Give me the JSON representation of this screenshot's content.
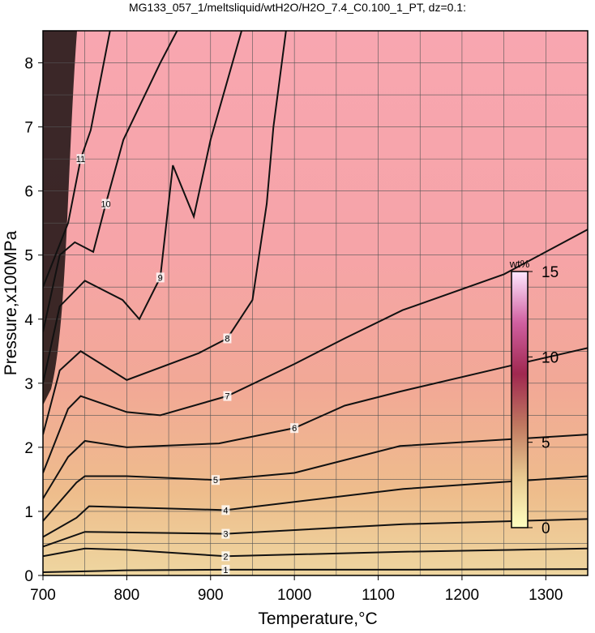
{
  "chart_data": {
    "type": "contour",
    "title": "MG133_057_1/meltsliquid/wtH2O/H2O_7.4_C0.100_1_PT, dz=0.1:",
    "xlabel": "Temperature,°C",
    "ylabel": "Pressure,x100MPa",
    "xlim": [
      700,
      1350
    ],
    "ylim": [
      0,
      8.5
    ],
    "xticks": [
      700,
      800,
      900,
      1000,
      1100,
      1200,
      1300
    ],
    "yticks": [
      0,
      1,
      2,
      3,
      4,
      5,
      6,
      7,
      8
    ],
    "xgrid": [
      750,
      800,
      850,
      900,
      950,
      1000,
      1050,
      1100,
      1150,
      1200,
      1250,
      1300
    ],
    "ygrid": [
      0.5,
      1,
      1.5,
      2,
      2.5,
      3,
      3.5,
      4,
      4.5,
      5,
      5.5,
      6,
      6.5,
      7,
      7.5,
      8
    ],
    "contours": [
      {
        "level": 1,
        "x": [
          700,
          800,
          918,
          1130,
          1350
        ],
        "y": [
          0.05,
          0.08,
          0.09,
          0.09,
          0.1
        ]
      },
      {
        "level": 2,
        "x": [
          700,
          750,
          800,
          918,
          1130,
          1350
        ],
        "y": [
          0.3,
          0.42,
          0.4,
          0.3,
          0.37,
          0.42
        ]
      },
      {
        "level": 3,
        "x": [
          700,
          750,
          918,
          1130,
          1350
        ],
        "y": [
          0.45,
          0.68,
          0.65,
          0.8,
          0.88
        ]
      },
      {
        "level": 4,
        "x": [
          700,
          740,
          755,
          918,
          1130,
          1350
        ],
        "y": [
          0.6,
          0.9,
          1.08,
          1.02,
          1.35,
          1.55
        ]
      },
      {
        "level": 5,
        "x": [
          700,
          740,
          750,
          800,
          906,
          1000,
          1126,
          1350
        ],
        "y": [
          0.85,
          1.45,
          1.55,
          1.55,
          1.49,
          1.6,
          2.02,
          2.2
        ]
      },
      {
        "level": 6,
        "x": [
          700,
          730,
          750,
          800,
          910,
          1000,
          1060,
          1126,
          1250,
          1350
        ],
        "y": [
          1.2,
          1.85,
          2.1,
          2.0,
          2.06,
          2.3,
          2.65,
          2.87,
          3.25,
          3.55
        ]
      },
      {
        "level": 7,
        "x": [
          700,
          730,
          745,
          800,
          840,
          920,
          1000,
          1060,
          1129,
          1250,
          1350
        ],
        "y": [
          1.6,
          2.6,
          2.8,
          2.55,
          2.5,
          2.8,
          3.3,
          3.7,
          4.14,
          4.7,
          5.4
        ]
      },
      {
        "level": 8,
        "x": [
          700,
          720,
          745,
          800,
          886,
          920,
          950,
          967,
          975,
          990
        ],
        "y": [
          2.2,
          3.2,
          3.5,
          3.05,
          3.47,
          3.7,
          4.3,
          5.8,
          7.0,
          8.5
        ]
      },
      {
        "level": 9,
        "x": [
          700,
          720,
          750,
          795,
          815,
          840,
          855,
          880,
          900,
          937
        ],
        "y": [
          3.0,
          4.2,
          4.6,
          4.3,
          4.0,
          4.65,
          6.4,
          5.6,
          6.8,
          8.5
        ]
      },
      {
        "level": 10,
        "x": [
          700,
          720,
          738,
          760,
          775,
          796,
          840,
          860
        ],
        "y": [
          3.8,
          5.0,
          5.2,
          5.05,
          5.8,
          6.8,
          8.0,
          8.5
        ]
      },
      {
        "level": 11,
        "x": [
          700,
          730,
          745,
          757,
          780
        ],
        "y": [
          4.5,
          5.5,
          6.5,
          6.95,
          8.5
        ]
      }
    ],
    "colorbar": {
      "label": "wt%",
      "lim": [
        0,
        15
      ],
      "ticks": [
        0,
        5,
        10,
        15
      ],
      "colors": [
        "#ffffc0",
        "#e8c890",
        "#c07860",
        "#a02850",
        "#d060a0",
        "#ffe8ff"
      ]
    }
  }
}
